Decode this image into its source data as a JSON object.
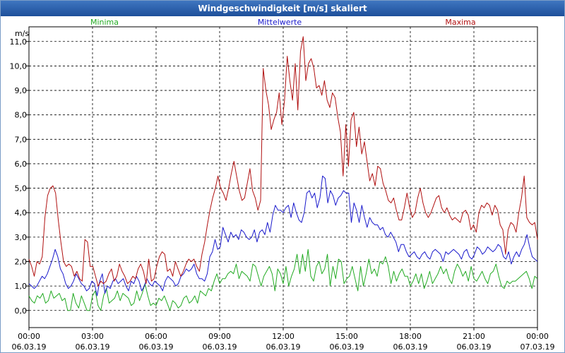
{
  "window": {
    "title": "Windgeschwindigkeit [m/s] skaliert"
  },
  "chart_data": {
    "type": "line",
    "ylabel": "m/s",
    "ylim": [
      -0.7,
      11.6
    ],
    "grid": true,
    "yticks": [
      "0,0",
      "1,0",
      "2,0",
      "3,0",
      "4,0",
      "5,0",
      "6,0",
      "7,0",
      "8,0",
      "9,0",
      "10,0",
      "11,0"
    ],
    "xtick_times": [
      "00:00",
      "03:00",
      "06:00",
      "09:00",
      "12:00",
      "15:00",
      "18:00",
      "21:00",
      "00:00"
    ],
    "xtick_dates": [
      "06.03.19",
      "06.03.19",
      "06.03.19",
      "06.03.19",
      "06.03.19",
      "06.03.19",
      "06.03.19",
      "06.03.19",
      "07.03.19"
    ],
    "series": [
      {
        "name": "Minima",
        "color": "#22aa22",
        "values": [
          0.6,
          0.4,
          0.3,
          0.6,
          0.5,
          0.7,
          0.3,
          0.4,
          0.8,
          0.5,
          0.6,
          0.7,
          0.4,
          0.5,
          0.0,
          0.0,
          0.7,
          0.3,
          0.1,
          0.6,
          0.3,
          0.0,
          0.0,
          0.6,
          0.8,
          0.2,
          0.0,
          0.6,
          0.9,
          0.3,
          0.4,
          0.5,
          0.8,
          0.4,
          0.7,
          0.6,
          0.5,
          0.2,
          0.3,
          0.8,
          0.4,
          0.7,
          1.1,
          0.6,
          0.2,
          0.3,
          0.2,
          0.5,
          0.4,
          0.6,
          0.3,
          0.0,
          0.4,
          0.3,
          0.1,
          0.2,
          0.5,
          0.6,
          0.3,
          0.4,
          0.6,
          0.3,
          0.8,
          0.7,
          0.6,
          0.9,
          0.8,
          1.2,
          1.5,
          1.1,
          1.3,
          1.3,
          1.5,
          1.6,
          1.5,
          1.9,
          1.3,
          1.6,
          1.5,
          1.4,
          1.2,
          1.9,
          1.8,
          1.4,
          1.0,
          1.4,
          1.6,
          1.8,
          1.5,
          0.8,
          1.7,
          1.5,
          1.1,
          1.8,
          1.0,
          1.4,
          1.7,
          2.3,
          1.5,
          2.3,
          1.6,
          2.5,
          1.4,
          1.2,
          1.8,
          2.0,
          1.5,
          1.7,
          2.3,
          1.0,
          1.8,
          1.3,
          2.1,
          2.0,
          1.1,
          1.3,
          1.4,
          1.8,
          1.3,
          0.8,
          1.8,
          1.0,
          1.5,
          2.1,
          1.5,
          1.7,
          1.4,
          2.0,
          1.9,
          2.2,
          1.8,
          1.1,
          1.6,
          1.2,
          1.5,
          1.7,
          1.4,
          1.4,
          1.0,
          1.2,
          1.5,
          1.1,
          1.5,
          0.9,
          1.2,
          1.6,
          1.1,
          1.3,
          1.5,
          1.8,
          1.5,
          1.7,
          1.3,
          1.1,
          1.6,
          1.9,
          1.7,
          1.4,
          1.6,
          1.2,
          1.8,
          1.3,
          1.2,
          1.4,
          1.6,
          1.3,
          1.1,
          1.5,
          1.6,
          1.9,
          1.4,
          1.0,
          0.9,
          1.2,
          1.1,
          1.2,
          1.2,
          1.3,
          1.4,
          1.5,
          1.6,
          1.3,
          0.9,
          1.4,
          1.3
        ]
      },
      {
        "name": "Mittelwerte",
        "color": "#1a1acc",
        "values": [
          1.1,
          1.0,
          0.9,
          1.0,
          1.2,
          1.4,
          1.3,
          1.5,
          1.8,
          2.1,
          2.5,
          2.2,
          1.7,
          1.5,
          1.1,
          0.9,
          1.0,
          1.2,
          1.5,
          1.3,
          1.1,
          1.0,
          0.8,
          0.9,
          1.2,
          1.1,
          0.6,
          1.2,
          1.5,
          0.7,
          1.0,
          0.9,
          1.2,
          1.3,
          1.1,
          1.2,
          1.3,
          1.0,
          0.8,
          1.2,
          1.1,
          1.4,
          1.2,
          0.8,
          1.0,
          1.3,
          1.1,
          1.0,
          1.2,
          1.1,
          1.0,
          0.8,
          1.2,
          1.4,
          1.3,
          1.2,
          1.0,
          1.1,
          1.4,
          1.5,
          1.7,
          1.6,
          1.7,
          1.9,
          1.5,
          1.3,
          1.3,
          1.2,
          1.5,
          2.2,
          2.4,
          2.9,
          2.5,
          2.6,
          3.4,
          3.1,
          2.8,
          3.2,
          3.0,
          3.1,
          2.9,
          3.3,
          3.2,
          3.0,
          2.9,
          3.0,
          3.3,
          2.8,
          3.2,
          3.3,
          3.1,
          3.6,
          3.2,
          3.9,
          4.3,
          4.1,
          4.1,
          4.0,
          4.2,
          4.3,
          3.8,
          4.4,
          4.0,
          3.7,
          3.6,
          4.0,
          4.8,
          4.9,
          4.6,
          4.8,
          4.2,
          4.6,
          5.5,
          5.4,
          4.4,
          4.9,
          4.7,
          4.3,
          4.6,
          4.7,
          4.9,
          4.8,
          4.8,
          3.6,
          4.4,
          4.1,
          3.6,
          4.3,
          3.8,
          3.4,
          3.8,
          3.6,
          3.5,
          3.5,
          3.3,
          3.4,
          3.1,
          3.0,
          3.2,
          3.0,
          2.8,
          2.4,
          2.7,
          2.7,
          2.4,
          2.2,
          2.3,
          2.4,
          2.2,
          2.1,
          2.3,
          2.4,
          2.2,
          2.1,
          2.4,
          2.5,
          2.4,
          2.3,
          2.0,
          2.4,
          2.3,
          2.4,
          2.5,
          2.4,
          2.3,
          2.1,
          2.4,
          2.5,
          2.2,
          2.1,
          2.3,
          2.6,
          2.5,
          2.3,
          2.4,
          2.6,
          2.5,
          2.4,
          2.5,
          2.7,
          2.6,
          2.2,
          2.1,
          2.4,
          1.9,
          2.2,
          2.4,
          2.2,
          2.5,
          2.7,
          3.1,
          2.6,
          2.2,
          2.1,
          2.0
        ]
      },
      {
        "name": "Maxima",
        "color": "#b01010",
        "values": [
          2.1,
          1.8,
          1.4,
          2.0,
          1.9,
          2.2,
          3.8,
          4.7,
          5.0,
          5.1,
          4.8,
          3.7,
          2.8,
          2.0,
          1.8,
          1.9,
          1.8,
          1.4,
          1.6,
          1.3,
          1.2,
          2.9,
          2.8,
          1.8,
          1.8,
          1.4,
          1.0,
          1.2,
          1.1,
          1.2,
          1.5,
          1.7,
          1.2,
          1.4,
          1.9,
          1.6,
          1.4,
          1.1,
          1.2,
          1.4,
          1.3,
          1.7,
          1.9,
          1.6,
          1.1,
          2.1,
          1.2,
          1.3,
          1.8,
          2.2,
          2.4,
          2.3,
          1.6,
          1.7,
          1.4,
          2.0,
          1.7,
          1.4,
          1.6,
          1.9,
          2.1,
          2.0,
          2.1,
          1.8,
          1.6,
          2.3,
          2.8,
          3.5,
          4.1,
          4.6,
          5.0,
          5.5,
          5.0,
          4.8,
          4.5,
          5.0,
          5.6,
          6.1,
          5.5,
          4.9,
          4.5,
          4.6,
          5.2,
          5.8,
          4.9,
          4.6,
          4.1,
          4.5,
          9.9,
          9.0,
          8.4,
          7.4,
          7.8,
          8.1,
          8.9,
          7.6,
          8.6,
          10.4,
          9.4,
          8.6,
          10.1,
          8.2,
          10.6,
          11.2,
          9.4,
          10.1,
          10.3,
          9.9,
          9.1,
          9.2,
          8.8,
          9.4,
          8.6,
          8.3,
          8.9,
          8.7,
          7.9,
          7.3,
          5.5,
          7.6,
          5.9,
          7.8,
          8.1,
          6.7,
          7.5,
          6.4,
          6.9,
          6.1,
          5.3,
          5.6,
          5.1,
          5.9,
          5.8,
          5.2,
          4.9,
          4.5,
          4.4,
          4.6,
          4.1,
          3.7,
          3.7,
          4.2,
          4.8,
          4.2,
          3.8,
          4.0,
          4.6,
          5.0,
          4.4,
          4.0,
          3.8,
          4.0,
          4.3,
          4.6,
          4.7,
          4.2,
          4.0,
          4.2,
          3.9,
          3.7,
          3.8,
          3.7,
          3.6,
          4.0,
          4.1,
          3.9,
          3.3,
          3.5,
          3.2,
          4.0,
          4.3,
          4.2,
          4.4,
          4.3,
          3.9,
          4.3,
          4.1,
          3.5,
          3.3,
          2.3,
          3.3,
          3.6,
          3.5,
          3.2,
          4.0,
          4.6,
          5.5,
          3.8,
          3.6,
          3.5,
          3.6,
          2.9
        ]
      }
    ]
  }
}
